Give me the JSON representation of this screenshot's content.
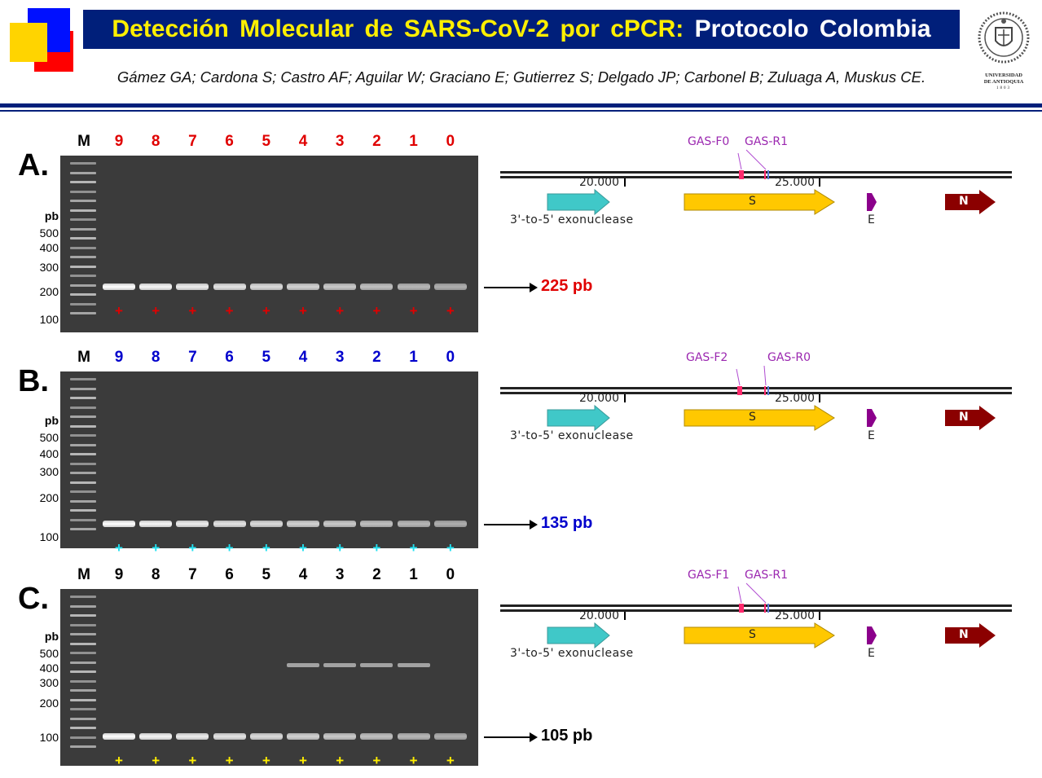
{
  "header": {
    "title_main": "Detección Molecular de SARS-CoV-2 por cPCR:",
    "title_suffix": "Protocolo Colombia",
    "authors": "Gámez GA; Cardona S; Castro AF; Aguilar W; Graciano E; Gutierrez S; Delgado JP; Carbonel B; Zuluaga A, Muskus CE.",
    "university_line1": "UNIVERSIDAD",
    "university_line2": "DE ANTIOQUIA",
    "university_year": "1803"
  },
  "colors": {
    "title_bg": "#001f7a",
    "title_text": "#ffef00",
    "square_yellow": "#ffd400",
    "square_blue": "#0010ff",
    "square_red": "#ff0000",
    "panel_a_accent": "#e00000",
    "panel_b_accent": "#0000cc",
    "panel_b_plus": "#22e0f0",
    "panel_c_accent": "#000000",
    "panel_c_plus": "#ffee00",
    "exonuclease": "#40c8c8",
    "s_gene": "#ffc800",
    "e_gene": "#8b008b",
    "n_gene": "#8b0000",
    "primer_text": "#9b27b0"
  },
  "ladder_marker": "M",
  "pb_unit": "pb",
  "ladder_sizes": [
    "500",
    "400",
    "300",
    "200",
    "100"
  ],
  "lanes": [
    "9",
    "8",
    "7",
    "6",
    "5",
    "4",
    "3",
    "2",
    "1",
    "0"
  ],
  "plus_sign": "+",
  "genome_map": {
    "tick_left": "20.000",
    "tick_right": "25.000",
    "exonuclease_label": "3'-to-5' exonuclease",
    "s_label": "S",
    "e_label": "E",
    "n_label": "N"
  },
  "panels": [
    {
      "letter": "A.",
      "amplicon": "225 pb",
      "primer_f": "GAS-F0",
      "primer_r": "GAS-R1",
      "band_level": 225,
      "extra_band": null
    },
    {
      "letter": "B.",
      "amplicon": "135 pb",
      "primer_f": "GAS-F2",
      "primer_r": "GAS-R0",
      "band_level": 135,
      "extra_band": null
    },
    {
      "letter": "C.",
      "amplicon": "105 pb",
      "primer_f": "GAS-F1",
      "primer_r": "GAS-R1",
      "band_level": 105,
      "extra_band": 430
    }
  ]
}
